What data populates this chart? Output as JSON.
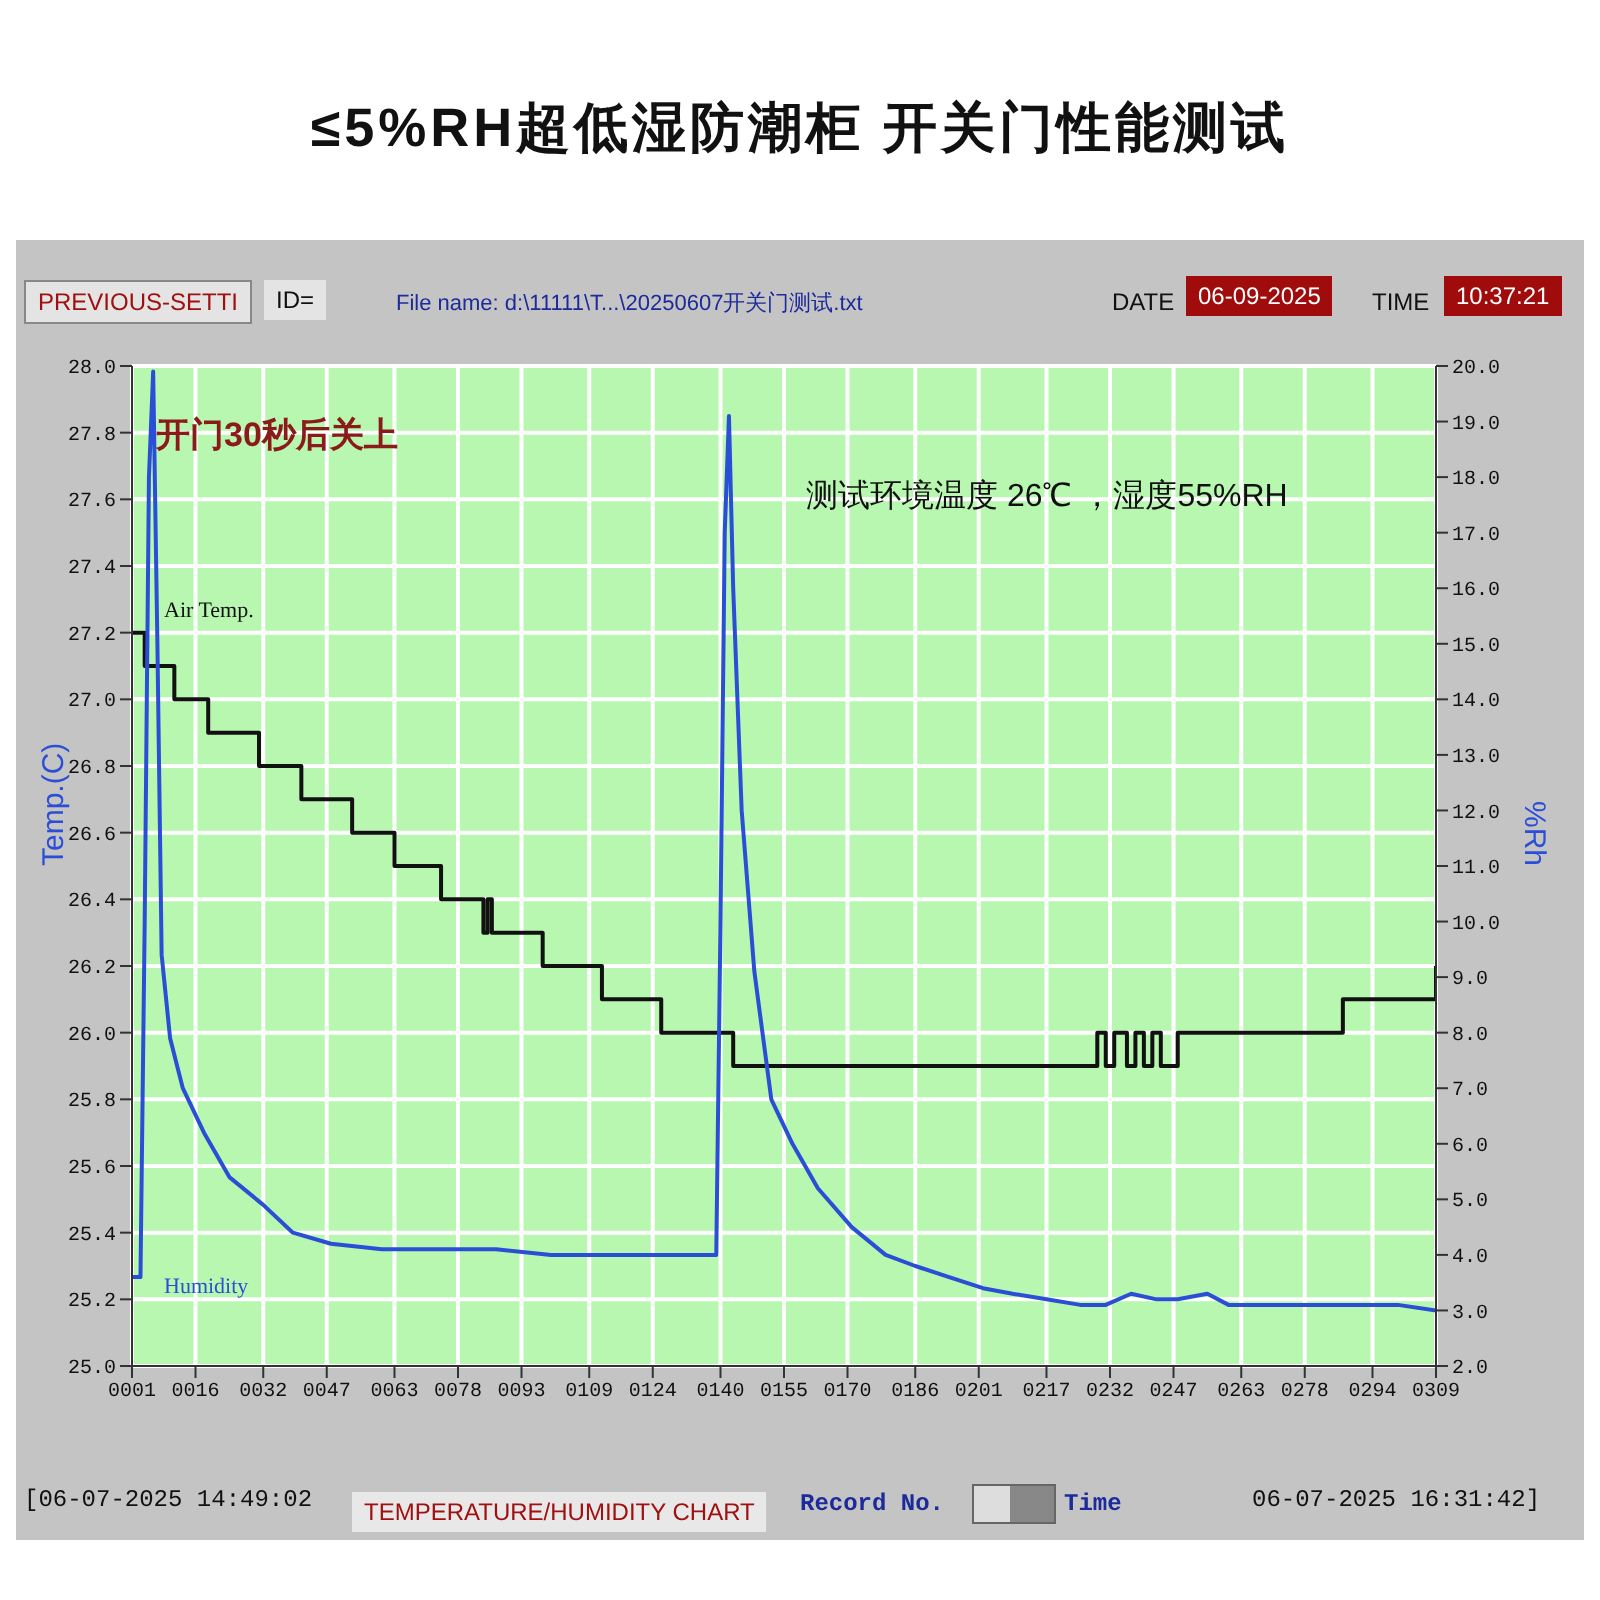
{
  "chart_data": {
    "type": "line",
    "title": "≤5%RH超低湿防潮柜 开关门性能测试",
    "ylabel": "Temp.(C)",
    "y2label": "%Rh",
    "annotations": [
      "开门30秒后关上",
      "测试环境温度 26℃ ，湿度55%RH",
      "PREVIOUS-SETTI",
      "ID=",
      "File name: d:\\11111\\T...\\20250607开关门测试.txt",
      "DATE",
      "06-09-2025",
      "TIME",
      "10:37:21",
      "[06-07-2025 14:49:02",
      "TEMPERATURE/HUMIDITY CHART",
      "Record No.",
      "Time",
      "06-07-2025 16:31:42]"
    ],
    "xlim": [
      1,
      309
    ],
    "xticks": [
      {
        "value": 1,
        "label": "0001"
      },
      {
        "value": 16,
        "label": "0016"
      },
      {
        "value": 32,
        "label": "0032"
      },
      {
        "value": 47,
        "label": "0047"
      },
      {
        "value": 63,
        "label": "0063"
      },
      {
        "value": 78,
        "label": "0078"
      },
      {
        "value": 93,
        "label": "0093"
      },
      {
        "value": 109,
        "label": "0109"
      },
      {
        "value": 124,
        "label": "0124"
      },
      {
        "value": 140,
        "label": "0140"
      },
      {
        "value": 155,
        "label": "0155"
      },
      {
        "value": 170,
        "label": "0170"
      },
      {
        "value": 186,
        "label": "0186"
      },
      {
        "value": 201,
        "label": "0201"
      },
      {
        "value": 217,
        "label": "0217"
      },
      {
        "value": 232,
        "label": "0232"
      },
      {
        "value": 247,
        "label": "0247"
      },
      {
        "value": 263,
        "label": "0263"
      },
      {
        "value": 278,
        "label": "0278"
      },
      {
        "value": 294,
        "label": "0294"
      },
      {
        "value": 309,
        "label": "0309"
      }
    ],
    "ylim": [
      25,
      28
    ],
    "yticks": [
      {
        "value": 25,
        "label": "25.0"
      },
      {
        "value": 25.2,
        "label": "25.2"
      },
      {
        "value": 25.4,
        "label": "25.4"
      },
      {
        "value": 25.6,
        "label": "25.6"
      },
      {
        "value": 25.8,
        "label": "25.8"
      },
      {
        "value": 26,
        "label": "26.0"
      },
      {
        "value": 26.2,
        "label": "26.2"
      },
      {
        "value": 26.4,
        "label": "26.4"
      },
      {
        "value": 26.6,
        "label": "26.6"
      },
      {
        "value": 26.8,
        "label": "26.8"
      },
      {
        "value": 27,
        "label": "27.0"
      },
      {
        "value": 27.2,
        "label": "27.2"
      },
      {
        "value": 27.4,
        "label": "27.4"
      },
      {
        "value": 27.6,
        "label": "27.6"
      },
      {
        "value": 27.8,
        "label": "27.8"
      },
      {
        "value": 28,
        "label": "28.0"
      }
    ],
    "y2lim": [
      2,
      20
    ],
    "y2ticks": [
      {
        "value": 2,
        "label": "2.0"
      },
      {
        "value": 3,
        "label": "3.0"
      },
      {
        "value": 4,
        "label": "4.0"
      },
      {
        "value": 5,
        "label": "5.0"
      },
      {
        "value": 6,
        "label": "6.0"
      },
      {
        "value": 7,
        "label": "7.0"
      },
      {
        "value": 8,
        "label": "8.0"
      },
      {
        "value": 9,
        "label": "9.0"
      },
      {
        "value": 10,
        "label": "10.0"
      },
      {
        "value": 11,
        "label": "11.0"
      },
      {
        "value": 12,
        "label": "12.0"
      },
      {
        "value": 13,
        "label": "13.0"
      },
      {
        "value": 14,
        "label": "14.0"
      },
      {
        "value": 15,
        "label": "15.0"
      },
      {
        "value": 16,
        "label": "16.0"
      },
      {
        "value": 17,
        "label": "17.0"
      },
      {
        "value": 18,
        "label": "18.0"
      },
      {
        "value": 19,
        "label": "19.0"
      },
      {
        "value": 20,
        "label": "20.0"
      }
    ],
    "grid": true,
    "legend": false,
    "marker": "none",
    "line_style": "solid",
    "series": [
      {
        "name": "Air Temp.",
        "type": "step",
        "color": "#111111",
        "x": [
          1,
          4,
          11,
          19,
          31,
          41,
          53,
          63,
          74,
          84,
          85,
          86,
          98,
          112,
          126,
          143,
          229,
          231,
          233,
          236,
          238,
          240,
          242,
          244,
          248,
          287,
          308,
          309
        ],
        "values": [
          27.2,
          27.1,
          27.0,
          26.9,
          26.8,
          26.7,
          26.6,
          26.5,
          26.4,
          26.3,
          26.4,
          26.3,
          26.2,
          26.1,
          26.0,
          25.9,
          26.0,
          25.9,
          26.0,
          25.9,
          26.0,
          25.9,
          26.0,
          25.9,
          26.0,
          26.1,
          26.1,
          26.2
        ]
      },
      {
        "name": "Humidity",
        "type": "line",
        "axis": "y2",
        "color": "#2a4fd6",
        "x": [
          1,
          3,
          4,
          5,
          6,
          7,
          8,
          10,
          13,
          18,
          24,
          32,
          39,
          48,
          60,
          87,
          100,
          120,
          139,
          140,
          141,
          142,
          143,
          145,
          148,
          152,
          157,
          163,
          171,
          179,
          186,
          194,
          202,
          209,
          217,
          225,
          231,
          237,
          243,
          248,
          255,
          260,
          280,
          300,
          309
        ],
        "values": [
          3.6,
          3.6,
          10,
          18,
          19.9,
          15,
          9.4,
          7.9,
          7.0,
          6.2,
          5.4,
          4.9,
          4.4,
          4.2,
          4.1,
          4.1,
          4.0,
          4.0,
          4.0,
          10,
          17,
          19.1,
          16,
          12,
          9.1,
          6.8,
          6.0,
          5.2,
          4.5,
          4.0,
          3.8,
          3.6,
          3.4,
          3.3,
          3.2,
          3.1,
          3.1,
          3.3,
          3.2,
          3.2,
          3.3,
          3.1,
          3.1,
          3.1,
          3.0
        ]
      }
    ]
  }
}
